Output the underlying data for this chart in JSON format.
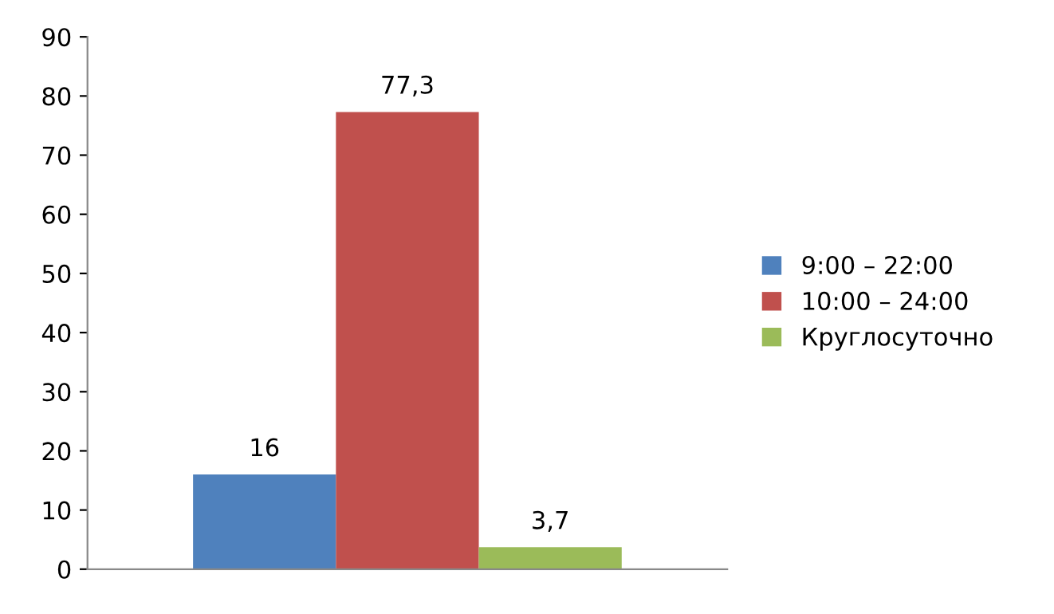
{
  "chart_data": {
    "type": "bar",
    "categories": [
      null
    ],
    "series": [
      {
        "name": "9:00 – 22:00",
        "color": "#4f81bd",
        "values": [
          16
        ],
        "value_labels": [
          "16"
        ]
      },
      {
        "name": "10:00 – 24:00",
        "color": "#c0504d",
        "values": [
          77.3
        ],
        "value_labels": [
          "77,3"
        ]
      },
      {
        "name": "Круглосуточно",
        "color": "#9bbb59",
        "values": [
          3.7
        ],
        "value_labels": [
          "3,7"
        ]
      }
    ],
    "ylim": [
      0,
      90
    ],
    "yticks": [
      0,
      10,
      20,
      30,
      40,
      50,
      60,
      70,
      80,
      90
    ],
    "grid": false,
    "legend": "right"
  }
}
